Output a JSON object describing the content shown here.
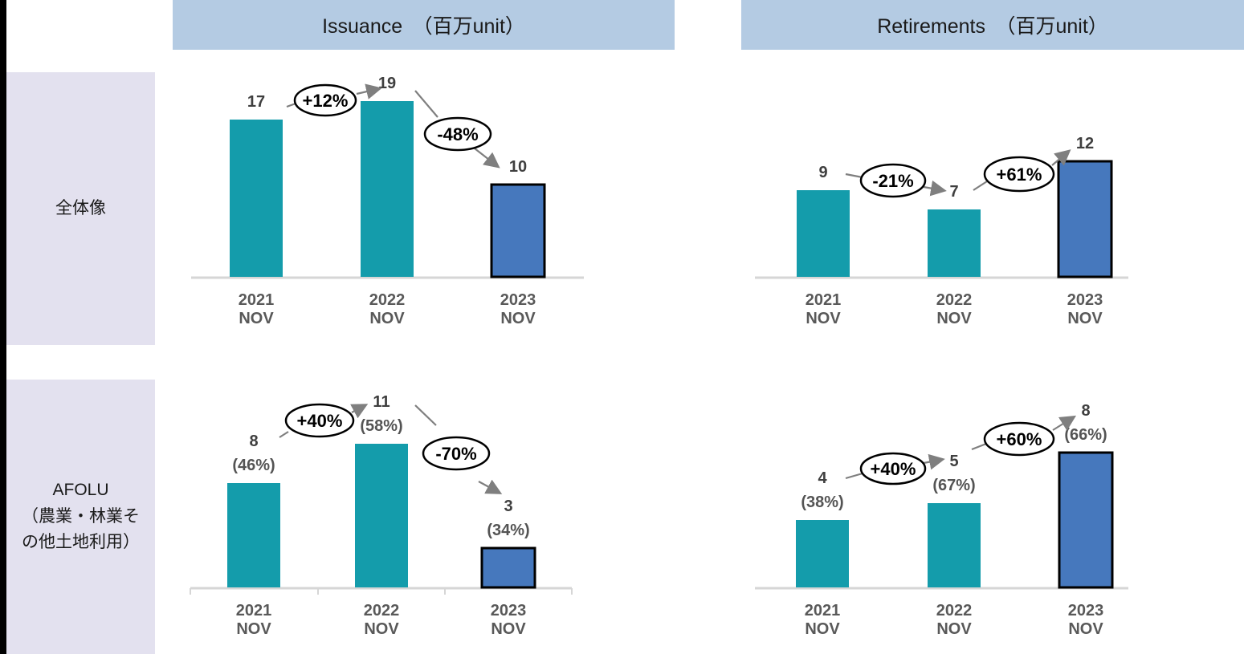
{
  "colors": {
    "header_bg": "#B4CBE3",
    "sidebar_bg": "#E3E1EF",
    "teal_bar": "#149CAB",
    "blue_bar": "#4678BD",
    "bar_outline": "#000000",
    "axis_line": "#D6D6D6",
    "value_text": "#3F3F3F",
    "category_text": "#595959",
    "arrow_gray": "#7F7F7F",
    "left_strip": "#000000"
  },
  "headers": {
    "left": "Issuance　（百万unit）",
    "right": "Retirements　（百万unit）"
  },
  "row_labels": {
    "overall": "全体像",
    "afolu_lines": [
      "AFOLU",
      "（農業・林業そ",
      "の他土地利用）"
    ]
  },
  "chart_data": [
    {
      "id": "overall-issuance",
      "type": "bar",
      "row": "全体像",
      "column": "Issuance",
      "unit": "百万unit",
      "categories": [
        "2021",
        "2022",
        "2023"
      ],
      "category_sub": [
        "NOV",
        "NOV",
        "NOV"
      ],
      "values": [
        17,
        19,
        10
      ],
      "value_labels": [
        "17",
        "19",
        "10"
      ],
      "bar_styles": [
        "teal",
        "teal",
        "blue-outlined"
      ],
      "annotations": [
        {
          "from": "2021",
          "to": "2022",
          "label": "+12%",
          "direction": "up"
        },
        {
          "from": "2022",
          "to": "2023",
          "label": "-48%",
          "direction": "down"
        }
      ],
      "y_axis_visible": false
    },
    {
      "id": "overall-retirements",
      "type": "bar",
      "row": "全体像",
      "column": "Retirements",
      "unit": "百万unit",
      "categories": [
        "2021",
        "2022",
        "2023"
      ],
      "category_sub": [
        "NOV",
        "NOV",
        "NOV"
      ],
      "values": [
        9,
        7,
        12
      ],
      "value_labels": [
        "9",
        "7",
        "12"
      ],
      "bar_styles": [
        "teal",
        "teal",
        "blue-outlined"
      ],
      "annotations": [
        {
          "from": "2021",
          "to": "2022",
          "label": "-21%",
          "direction": "down"
        },
        {
          "from": "2022",
          "to": "2023",
          "label": "+61%",
          "direction": "up"
        }
      ],
      "y_axis_visible": false
    },
    {
      "id": "afolu-issuance",
      "type": "bar",
      "row": "AFOLU（農業・林業その他土地利用）",
      "column": "Issuance",
      "unit": "百万unit",
      "categories": [
        "2021",
        "2022",
        "2023"
      ],
      "category_sub": [
        "NOV",
        "NOV",
        "NOV"
      ],
      "values": [
        8,
        11,
        3
      ],
      "value_labels": [
        "8",
        "11",
        "3"
      ],
      "share_labels": [
        "(46%)",
        "(58%)",
        "(34%)"
      ],
      "bar_styles": [
        "teal",
        "teal",
        "blue-outlined"
      ],
      "annotations": [
        {
          "from": "2021",
          "to": "2022",
          "label": "+40%",
          "direction": "up"
        },
        {
          "from": "2022",
          "to": "2023",
          "label": "-70%",
          "direction": "down"
        }
      ],
      "y_axis_visible": false
    },
    {
      "id": "afolu-retirements",
      "type": "bar",
      "row": "AFOLU（農業・林業その他土地利用）",
      "column": "Retirements",
      "unit": "百万unit",
      "categories": [
        "2021",
        "2022",
        "2023"
      ],
      "category_sub": [
        "NOV",
        "NOV",
        "NOV"
      ],
      "values": [
        4,
        5,
        8
      ],
      "value_labels": [
        "4",
        "5",
        "8"
      ],
      "share_labels": [
        "(38%)",
        "(67%)",
        "(66%)"
      ],
      "bar_styles": [
        "teal",
        "teal",
        "blue-outlined"
      ],
      "annotations": [
        {
          "from": "2021",
          "to": "2022",
          "label": "+40%",
          "direction": "up"
        },
        {
          "from": "2022",
          "to": "2023",
          "label": "+60%",
          "direction": "up"
        }
      ],
      "y_axis_visible": false
    }
  ]
}
